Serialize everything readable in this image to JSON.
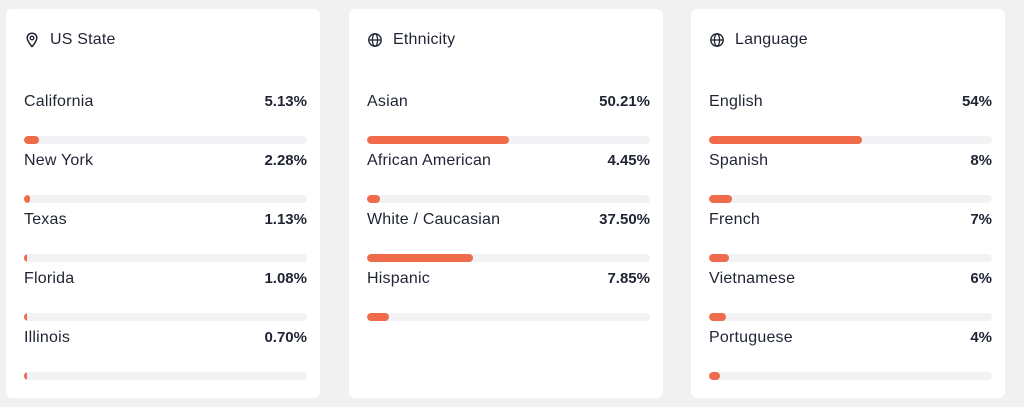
{
  "colors": {
    "accent": "#ef6b4a",
    "track": "#f2f2f4",
    "text": "#1f2433",
    "page_background": "#f1f1f2",
    "card_background": "#ffffff"
  },
  "cards": [
    {
      "title": "US State",
      "icon": "location-pin-icon",
      "rows": [
        {
          "label": "California",
          "value": "5.13%",
          "fill": 0.0513
        },
        {
          "label": "New York",
          "value": "2.28%",
          "fill": 0.0228
        },
        {
          "label": "Texas",
          "value": "1.13%",
          "fill": 0.0113
        },
        {
          "label": "Florida",
          "value": "1.08%",
          "fill": 0.0108
        },
        {
          "label": "Illinois",
          "value": "0.70%",
          "fill": 0.007
        }
      ]
    },
    {
      "title": "Ethnicity",
      "icon": "globe-icon",
      "rows": [
        {
          "label": "Asian",
          "value": "50.21%",
          "fill": 0.5021
        },
        {
          "label": "African American",
          "value": "4.45%",
          "fill": 0.0445
        },
        {
          "label": "White / Caucasian",
          "value": "37.50%",
          "fill": 0.375
        },
        {
          "label": "Hispanic",
          "value": "7.85%",
          "fill": 0.0785
        }
      ]
    },
    {
      "title": "Language",
      "icon": "globe-icon",
      "rows": [
        {
          "label": "English",
          "value": "54%",
          "fill": 0.54
        },
        {
          "label": "Spanish",
          "value": "8%",
          "fill": 0.08
        },
        {
          "label": "French",
          "value": "7%",
          "fill": 0.07
        },
        {
          "label": "Vietnamese",
          "value": "6%",
          "fill": 0.06
        },
        {
          "label": "Portuguese",
          "value": "4%",
          "fill": 0.04
        }
      ]
    }
  ]
}
